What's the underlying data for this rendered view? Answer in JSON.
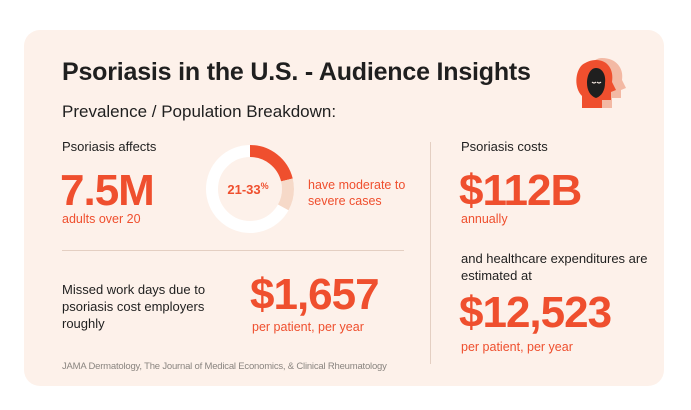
{
  "title": "Psoriasis in the U.S. - Audience Insights",
  "subtitle": "Prevalence / Population Breakdown:",
  "affects": {
    "label": "Psoriasis affects",
    "value": "7.5M",
    "sublabel": "adults over 20"
  },
  "donut": {
    "text": "21-33",
    "unit": "%",
    "fill_fraction": 0.33,
    "caption": "have moderate to severe cases",
    "colors": {
      "fill": "#ef4f2e",
      "track": "#f6d9c8"
    }
  },
  "missed": {
    "label": "Missed work days due to psoriasis cost employers roughly",
    "value": "$1,657",
    "sublabel": "per patient, per year"
  },
  "costs": {
    "label": "Psoriasis costs",
    "value": "$112B",
    "sublabel": "annually"
  },
  "healthcare": {
    "label": "and healthcare expenditures are estimated at",
    "value": "$12,523",
    "sublabel": "per patient, per year"
  },
  "source": "JAMA Dermatology, The Journal of Medical Economics, & Clinical Rheumatology",
  "logo_icon": "heads-icon",
  "colors": {
    "accent": "#ef4f2e",
    "card_bg": "#fdf1ea",
    "text": "#1f1f1f",
    "divider": "#e4cfc2"
  }
}
